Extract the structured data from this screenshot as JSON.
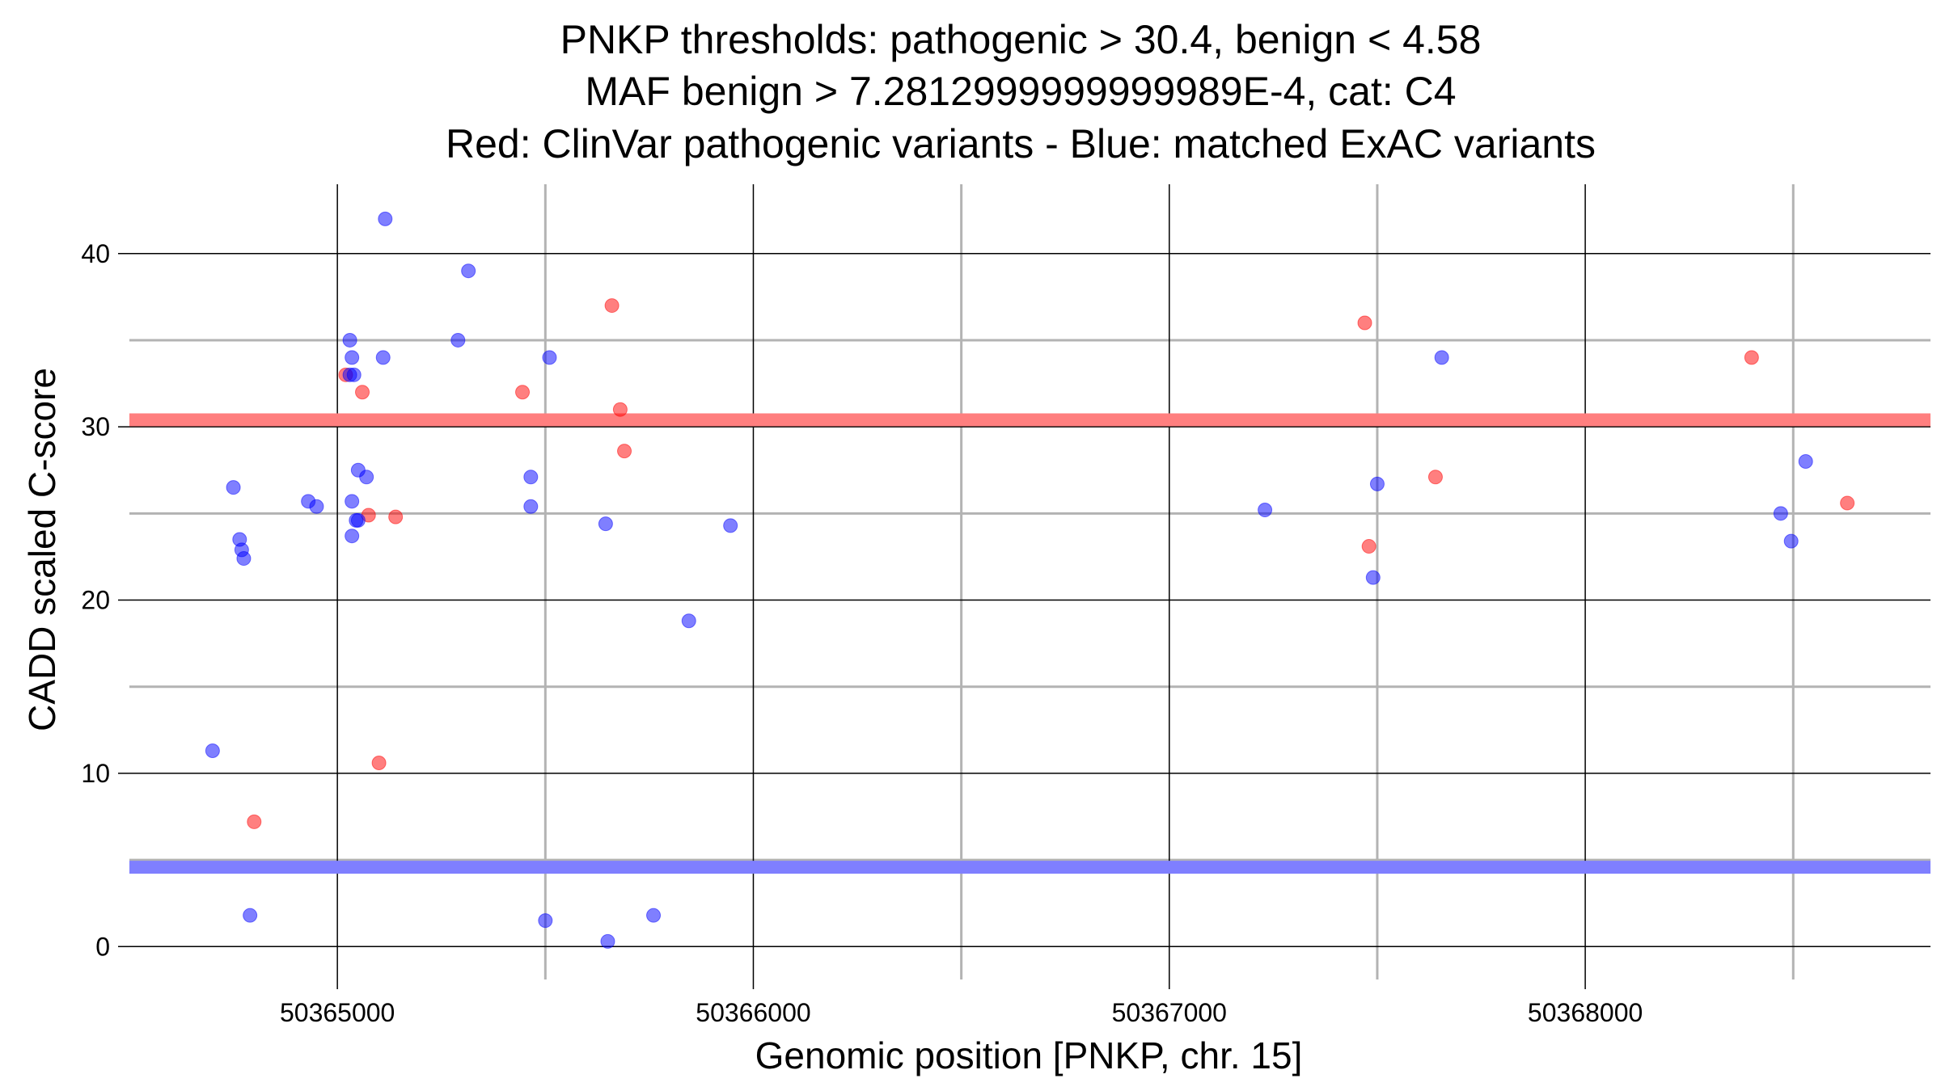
{
  "chart_data": {
    "type": "scatter",
    "title_lines": [
      "PNKP thresholds: pathogenic > 30.4, benign < 4.58",
      "MAF benign > 7.2812999999999989E-4, cat: C4",
      "Red: ClinVar pathogenic variants - Blue: matched ExAC variants"
    ],
    "xlabel": "Genomic position [PNKP, chr. 15]",
    "ylabel": "CADD scaled C-score",
    "xlim": [
      50364500,
      50368830
    ],
    "ylim": [
      -1.9,
      44.0
    ],
    "x_ticks": [
      50365000,
      50366000,
      50367000,
      50368000
    ],
    "x_tick_labels": [
      "50365000",
      "50366000",
      "50367000",
      "50368000"
    ],
    "y_ticks": [
      0,
      10,
      20,
      30,
      40
    ],
    "y_tick_labels": [
      "0",
      "10",
      "20",
      "30",
      "40"
    ],
    "x_minor_grid": [
      50365500,
      50366500,
      50367500,
      50368500
    ],
    "y_minor_grid": [
      5,
      15,
      25,
      35
    ],
    "grid": true,
    "legend": "none",
    "thresholds": {
      "pathogenic": 30.4,
      "benign": 4.58,
      "pathogenic_color": "#ff7f7f",
      "benign_color": "#7f7fff"
    },
    "series": [
      {
        "color": "#ff0000",
        "points": [
          [
            50365020,
            33.0
          ],
          [
            50365060,
            32.0
          ],
          [
            50365075,
            24.9
          ],
          [
            50365100,
            10.6
          ],
          [
            50365140,
            24.8
          ],
          [
            50364800,
            7.2
          ],
          [
            50365445,
            32.0
          ],
          [
            50365660,
            37.0
          ],
          [
            50365680,
            31.0
          ],
          [
            50365690,
            28.6
          ],
          [
            50367470,
            36.0
          ],
          [
            50367480,
            23.1
          ],
          [
            50367640,
            27.1
          ],
          [
            50368400,
            34.0
          ],
          [
            50368630,
            25.6
          ]
        ]
      },
      {
        "color": "#0000ff",
        "points": [
          [
            50364700,
            11.3
          ],
          [
            50364750,
            26.5
          ],
          [
            50364765,
            23.5
          ],
          [
            50364770,
            22.9
          ],
          [
            50364775,
            22.4
          ],
          [
            50364790,
            1.8
          ],
          [
            50364930,
            25.7
          ],
          [
            50364950,
            25.4
          ],
          [
            50365030,
            35.0
          ],
          [
            50365030,
            33.0
          ],
          [
            50365035,
            34.0
          ],
          [
            50365040,
            33.0
          ],
          [
            50365035,
            25.7
          ],
          [
            50365035,
            23.7
          ],
          [
            50365045,
            24.6
          ],
          [
            50365050,
            24.6
          ],
          [
            50365050,
            27.5
          ],
          [
            50365070,
            27.1
          ],
          [
            50365110,
            34.0
          ],
          [
            50365115,
            42.0
          ],
          [
            50365290,
            35.0
          ],
          [
            50365315,
            39.0
          ],
          [
            50365465,
            27.1
          ],
          [
            50365465,
            25.4
          ],
          [
            50365500,
            1.5
          ],
          [
            50365510,
            34.0
          ],
          [
            50365645,
            24.4
          ],
          [
            50365650,
            0.3
          ],
          [
            50365760,
            1.8
          ],
          [
            50365845,
            18.8
          ],
          [
            50365945,
            24.3
          ],
          [
            50367230,
            25.2
          ],
          [
            50367490,
            21.3
          ],
          [
            50367500,
            26.7
          ],
          [
            50367655,
            34.0
          ],
          [
            50368470,
            25.0
          ],
          [
            50368495,
            23.4
          ],
          [
            50368530,
            28.0
          ]
        ]
      }
    ]
  }
}
